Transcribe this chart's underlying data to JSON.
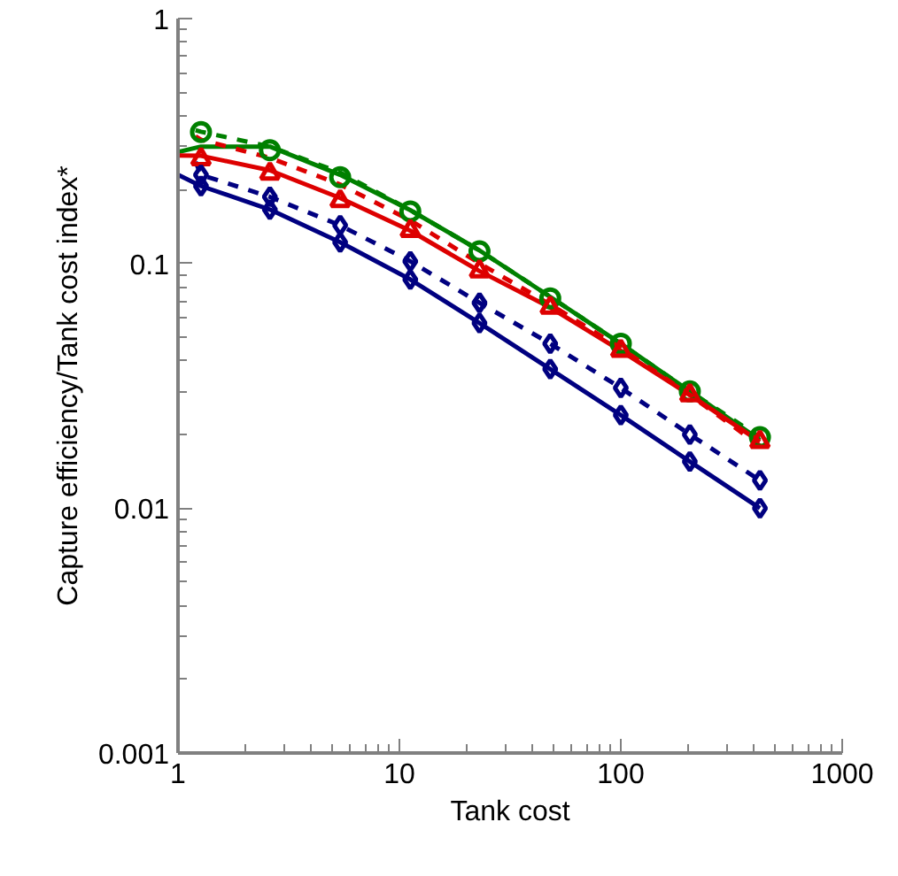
{
  "chart_data": {
    "type": "line",
    "xlabel": "Tank cost",
    "ylabel": "Capture efficiency/Tank cost index*",
    "log": "xy",
    "xlim": [
      1,
      1000
    ],
    "ylim": [
      0.001,
      1
    ],
    "xticks": [
      1,
      10,
      100,
      1000
    ],
    "yticks": [
      0.001,
      0.01,
      0.1,
      1
    ],
    "grid": false,
    "series": [
      {
        "color": "#008000",
        "line_style": "solid",
        "marker": "none",
        "x": [
          1,
          1.27,
          2.6,
          5.4,
          11.2,
          23,
          48,
          100,
          205,
          425
        ],
        "values": [
          0.285,
          0.3,
          0.3,
          0.23,
          0.165,
          0.113,
          0.073,
          0.047,
          0.03,
          0.019
        ]
      },
      {
        "color": "#008000",
        "line_style": "dashed",
        "marker": "none",
        "x": [
          1.2,
          1.27,
          2.6,
          5.4,
          11.2,
          23,
          48,
          100,
          205,
          425
        ],
        "values": [
          0.35,
          0.345,
          0.3,
          0.235,
          0.165,
          0.113,
          0.073,
          0.047,
          0.03,
          0.0195
        ]
      },
      {
        "color": "#dd0000",
        "line_style": "solid",
        "marker": "none",
        "x": [
          1,
          1.27,
          2.6,
          5.4,
          11.2,
          23,
          48,
          100,
          205,
          425
        ],
        "values": [
          0.276,
          0.275,
          0.24,
          0.185,
          0.136,
          0.093,
          0.066,
          0.044,
          0.029,
          0.0187
        ]
      },
      {
        "color": "#dd0000",
        "line_style": "dashed",
        "marker": "none",
        "x": [
          1.2,
          1.27,
          2.6,
          5.4,
          11.2,
          23,
          48,
          100,
          205,
          425
        ],
        "values": [
          0.33,
          0.32,
          0.27,
          0.21,
          0.15,
          0.1,
          0.068,
          0.045,
          0.029,
          0.018
        ]
      },
      {
        "color": "#000080",
        "line_style": "solid",
        "marker": "none",
        "x": [
          1,
          1.27,
          2.6,
          5.4,
          11.2,
          23,
          48,
          100,
          205,
          425
        ],
        "values": [
          0.23,
          0.207,
          0.166,
          0.122,
          0.086,
          0.057,
          0.037,
          0.024,
          0.0155,
          0.01
        ]
      },
      {
        "color": "#000080",
        "line_style": "dashed",
        "marker": "none",
        "x": [
          1.2,
          1.27,
          2.6,
          5.4,
          11.2,
          23,
          48,
          100,
          205,
          425
        ],
        "values": [
          0.26,
          0.23,
          0.187,
          0.143,
          0.102,
          0.069,
          0.047,
          0.031,
          0.02,
          0.013
        ]
      },
      {
        "type": "scatter",
        "color": "#008000",
        "marker": "circle",
        "x": [
          1.27,
          2.6,
          5.4,
          11.2,
          23,
          48,
          100,
          205,
          425
        ],
        "values": [
          0.344,
          0.29,
          0.225,
          0.163,
          0.112,
          0.072,
          0.047,
          0.03,
          0.0195
        ]
      },
      {
        "type": "scatter",
        "color": "#dd0000",
        "marker": "triangle",
        "x": [
          1.27,
          2.6,
          5.4,
          11.2,
          23,
          48,
          100,
          205,
          425
        ],
        "values": [
          0.267,
          0.233,
          0.18,
          0.136,
          0.093,
          0.066,
          0.044,
          0.029,
          0.0187
        ]
      },
      {
        "type": "scatter",
        "color": "#000080",
        "marker": "diamond",
        "x": [
          1.27,
          2.6,
          5.4,
          11.2,
          23,
          48,
          100,
          205,
          425
        ],
        "values": [
          0.207,
          0.166,
          0.122,
          0.086,
          0.057,
          0.037,
          0.024,
          0.0155,
          0.01
        ]
      },
      {
        "type": "scatter",
        "color": "#000080",
        "marker": "diamond",
        "x": [
          1.27,
          2.6,
          5.4,
          11.2,
          23,
          48,
          100,
          205,
          425
        ],
        "values": [
          0.23,
          0.187,
          0.143,
          0.102,
          0.069,
          0.047,
          0.031,
          0.02,
          0.013
        ]
      }
    ]
  }
}
